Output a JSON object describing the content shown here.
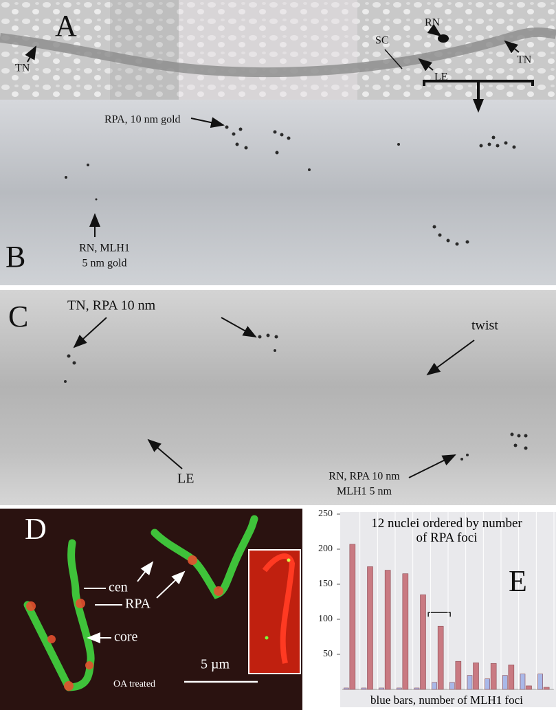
{
  "panels": {
    "A": {
      "label": "A",
      "tn_left": "TN",
      "tn_right": "TN",
      "rn": "RN",
      "sc": "SC",
      "le": "LE"
    },
    "B": {
      "label": "B",
      "rpa": "RPA, 10 nm gold",
      "rn_line1": "RN, MLH1",
      "rn_line2": "5 nm gold"
    },
    "C": {
      "label": "C",
      "tn": "TN, RPA 10 nm",
      "twist": "twist",
      "le": "LE",
      "rn_line1": "RN, RPA 10 nm",
      "rn_line2": "MLH1 5 nm"
    },
    "D": {
      "label": "D",
      "cen": "cen",
      "rpa": "RPA",
      "core": "core",
      "scale": "5 µm",
      "treatment": "OA treated"
    }
  },
  "chart_data": {
    "type": "bar",
    "label": "E",
    "title": "12 nuclei ordered by number of RPA foci",
    "x_label": "blue bars, number of MLH1 foci",
    "categories": [
      null,
      null,
      null,
      null,
      null,
      null,
      null,
      null,
      null,
      null,
      null,
      null
    ],
    "series": [
      {
        "color": "#a9b8e8",
        "values": [
          2,
          2,
          2,
          2,
          2,
          10,
          10,
          20,
          15,
          20,
          22,
          22
        ]
      },
      {
        "color": "#c97a82",
        "values": [
          207,
          175,
          170,
          165,
          135,
          90,
          40,
          38,
          37,
          35,
          5,
          3
        ]
      }
    ],
    "ylim": [
      0,
      250
    ],
    "yticks": [
      50,
      100,
      150,
      200,
      250
    ],
    "grid": true
  }
}
